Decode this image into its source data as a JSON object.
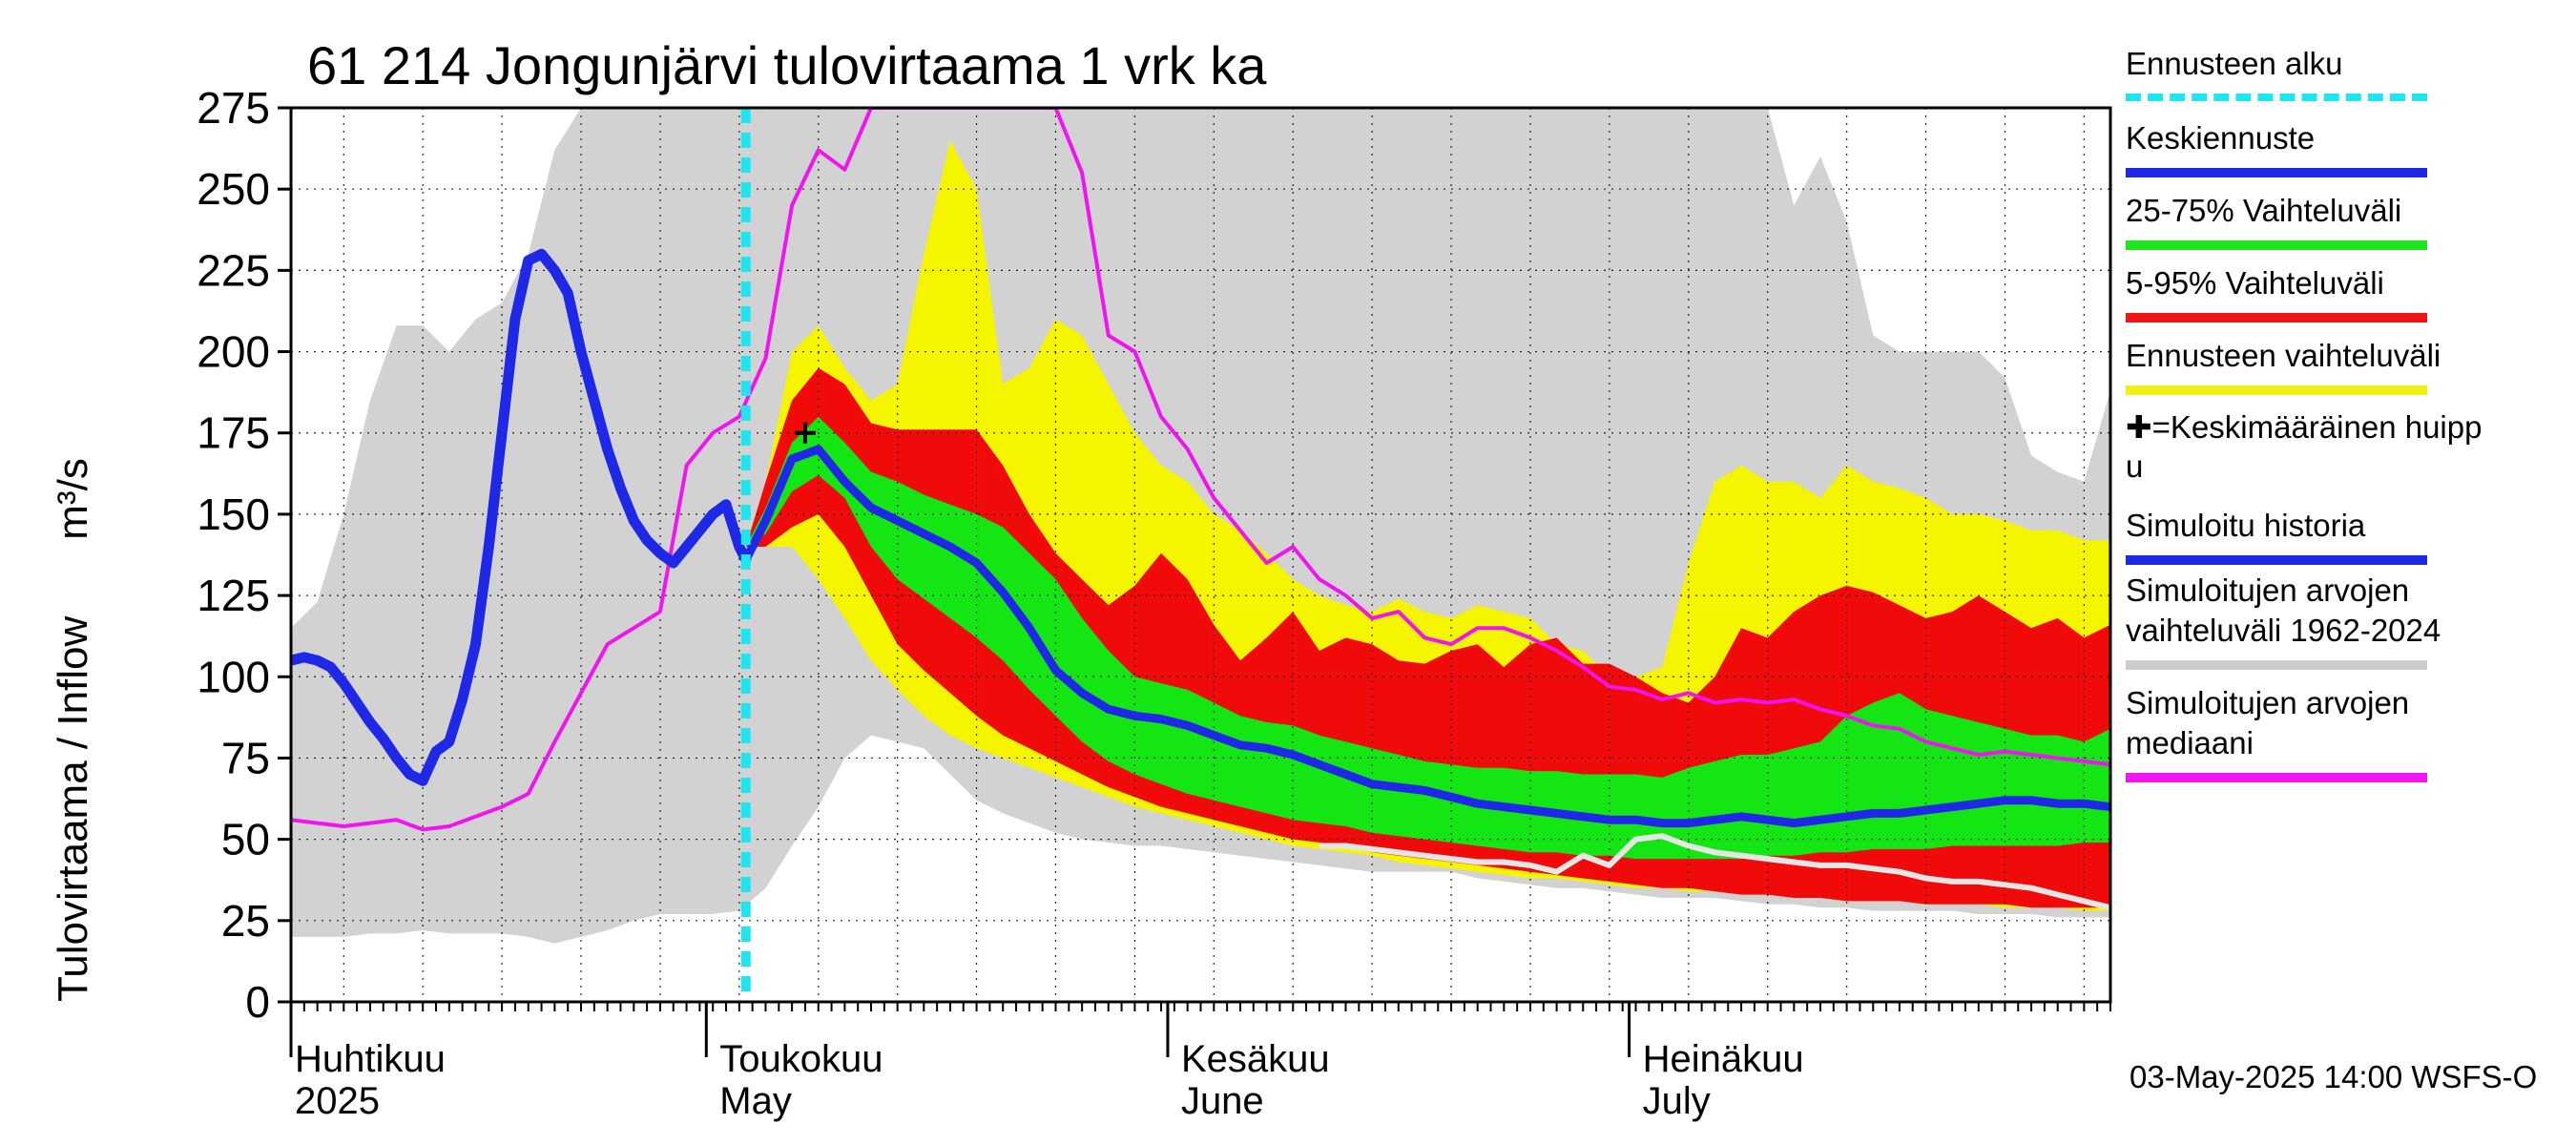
{
  "chart_data": {
    "type": "area",
    "title": "61 214 Jongunjärvi tulovirtaama 1 vrk ka",
    "ylabel": "Tulovirtaama / Inflow",
    "yunit": "m³/s",
    "ylim": [
      0,
      275
    ],
    "yticks": [
      0,
      25,
      50,
      75,
      100,
      125,
      150,
      175,
      200,
      225,
      250,
      275
    ],
    "xlim_days": [
      0,
      138
    ],
    "forecast_start_day": 34.5,
    "peak_marker": {
      "day": 39,
      "value": 175
    },
    "months": [
      {
        "day": 0,
        "fi": "Huhtikuu",
        "en": "2025"
      },
      {
        "day": 32,
        "fi": "Toukokuu",
        "en": "May"
      },
      {
        "day": 67,
        "fi": "Kesäkuu",
        "en": "June"
      },
      {
        "day": 102,
        "fi": "Heinäkuu",
        "en": "July"
      }
    ],
    "gray_band": {
      "name": "Simuloitujen arvojen vaihteluväli 1962-2024",
      "days": [
        0,
        2,
        4,
        6,
        8,
        10,
        12,
        14,
        16,
        18,
        20,
        22,
        24,
        26,
        28,
        30,
        32,
        34,
        36,
        38,
        40,
        42,
        44,
        46,
        48,
        50,
        52,
        54,
        56,
        58,
        60,
        62,
        64,
        66,
        68,
        70,
        72,
        74,
        76,
        78,
        80,
        82,
        84,
        86,
        88,
        90,
        92,
        94,
        96,
        98,
        100,
        102,
        104,
        106,
        108,
        110,
        112,
        114,
        116,
        118,
        120,
        122,
        124,
        126,
        128,
        130,
        132,
        134,
        136,
        138
      ],
      "upper": [
        115,
        123,
        150,
        185,
        208,
        208,
        200,
        210,
        215,
        230,
        262,
        275,
        275,
        275,
        275,
        275,
        275,
        275,
        275,
        275,
        275,
        275,
        275,
        275,
        275,
        275,
        275,
        275,
        275,
        275,
        275,
        275,
        275,
        275,
        275,
        275,
        275,
        275,
        275,
        275,
        275,
        275,
        275,
        275,
        275,
        275,
        275,
        275,
        275,
        275,
        275,
        275,
        275,
        275,
        275,
        275,
        275,
        245,
        260,
        240,
        205,
        200,
        200,
        200,
        200,
        192,
        168,
        163,
        160,
        188
      ],
      "lower": [
        20,
        20,
        20,
        21,
        21,
        22,
        21,
        21,
        21,
        20,
        18,
        20,
        22,
        25,
        27,
        27,
        27,
        28,
        35,
        48,
        60,
        75,
        82,
        80,
        78,
        70,
        62,
        58,
        55,
        52,
        50,
        49,
        48,
        48,
        47,
        46,
        45,
        44,
        43,
        42,
        41,
        40,
        40,
        40,
        40,
        38,
        37,
        36,
        35,
        35,
        34,
        33,
        32,
        32,
        32,
        31,
        30,
        30,
        29,
        29,
        28,
        28,
        28,
        28,
        27,
        27,
        27,
        26,
        26,
        26
      ]
    },
    "median": {
      "name": "Simuloitujen arvojen mediaani",
      "days": [
        0,
        2,
        4,
        6,
        8,
        10,
        12,
        14,
        16,
        18,
        20,
        22,
        24,
        26,
        28,
        30,
        32,
        34,
        36,
        38,
        40,
        42,
        44,
        46,
        48,
        50,
        52,
        54,
        56,
        58,
        60,
        62,
        64,
        66,
        68,
        70,
        72,
        74,
        76,
        78,
        80,
        82,
        84,
        86,
        88,
        90,
        92,
        94,
        96,
        98,
        100,
        102,
        104,
        106,
        108,
        110,
        112,
        114,
        116,
        118,
        120,
        122,
        124,
        126,
        128,
        130,
        132,
        134,
        136,
        138
      ],
      "values": [
        56,
        55,
        54,
        55,
        56,
        53,
        54,
        57,
        60,
        64,
        80,
        95,
        110,
        115,
        120,
        165,
        175,
        180,
        198,
        245,
        262,
        256,
        275,
        275,
        275,
        275,
        275,
        275,
        275,
        275,
        255,
        205,
        200,
        180,
        170,
        155,
        145,
        135,
        140,
        130,
        125,
        118,
        120,
        112,
        110,
        115,
        115,
        112,
        108,
        103,
        97,
        96,
        93,
        95,
        92,
        93,
        92,
        93,
        90,
        88,
        85,
        84,
        80,
        78,
        76,
        77,
        76,
        75,
        74,
        73
      ]
    },
    "yellow_band": {
      "name": "Ennusteen vaihteluväli",
      "days": [
        34.5,
        36,
        38,
        40,
        42,
        44,
        46,
        48,
        50,
        52,
        54,
        56,
        58,
        60,
        62,
        64,
        66,
        68,
        70,
        72,
        74,
        76,
        78,
        80,
        82,
        84,
        86,
        88,
        90,
        92,
        94,
        96,
        98,
        100,
        102,
        104,
        106,
        108,
        110,
        112,
        114,
        116,
        118,
        120,
        122,
        124,
        126,
        128,
        130,
        132,
        134,
        136,
        138
      ],
      "upper": [
        140,
        160,
        200,
        208,
        195,
        185,
        190,
        230,
        265,
        250,
        190,
        195,
        210,
        205,
        190,
        175,
        165,
        160,
        150,
        145,
        138,
        130,
        125,
        122,
        120,
        124,
        120,
        118,
        122,
        120,
        118,
        110,
        108,
        100,
        100,
        103,
        135,
        160,
        165,
        160,
        160,
        155,
        165,
        160,
        158,
        155,
        150,
        150,
        148,
        145,
        145,
        142,
        142
      ],
      "lower": [
        140,
        140,
        140,
        130,
        118,
        105,
        96,
        88,
        82,
        78,
        75,
        72,
        69,
        66,
        63,
        60,
        58,
        56,
        54,
        52,
        50,
        48,
        47,
        46,
        45,
        43,
        42,
        41,
        40,
        39,
        38,
        38,
        37,
        36,
        35,
        35,
        34,
        34,
        33,
        33,
        32,
        32,
        31,
        31,
        31,
        30,
        30,
        30,
        29,
        29,
        29,
        28,
        28
      ]
    },
    "red_band": {
      "name": "5-95% Vaihteluväli",
      "days": [
        34.5,
        36,
        38,
        40,
        42,
        44,
        46,
        48,
        50,
        52,
        54,
        56,
        58,
        60,
        62,
        64,
        66,
        68,
        70,
        72,
        74,
        76,
        78,
        80,
        82,
        84,
        86,
        88,
        90,
        92,
        94,
        96,
        98,
        100,
        102,
        104,
        106,
        108,
        110,
        112,
        114,
        116,
        118,
        120,
        122,
        124,
        126,
        128,
        130,
        132,
        134,
        136,
        138
      ],
      "upper": [
        140,
        160,
        185,
        195,
        190,
        178,
        176,
        176,
        176,
        176,
        165,
        150,
        138,
        130,
        122,
        128,
        138,
        130,
        116,
        105,
        112,
        120,
        108,
        112,
        110,
        105,
        104,
        108,
        110,
        103,
        110,
        112,
        104,
        104,
        100,
        95,
        92,
        100,
        115,
        112,
        120,
        125,
        128,
        126,
        122,
        118,
        120,
        125,
        120,
        115,
        118,
        112,
        116
      ],
      "lower": [
        140,
        140,
        146,
        150,
        140,
        125,
        110,
        102,
        95,
        88,
        82,
        78,
        74,
        70,
        66,
        63,
        60,
        58,
        56,
        54,
        52,
        50,
        49,
        48,
        46,
        45,
        44,
        43,
        42,
        41,
        40,
        39,
        38,
        37,
        36,
        35,
        35,
        34,
        33,
        33,
        32,
        32,
        31,
        31,
        31,
        30,
        30,
        30,
        30,
        29,
        29,
        29,
        29
      ]
    },
    "green_band": {
      "name": "25-75% Vaihteluväli",
      "days": [
        34.5,
        36,
        38,
        40,
        42,
        44,
        46,
        48,
        50,
        52,
        54,
        56,
        58,
        60,
        62,
        64,
        66,
        68,
        70,
        72,
        74,
        76,
        78,
        80,
        82,
        84,
        86,
        88,
        90,
        92,
        94,
        96,
        98,
        100,
        102,
        104,
        106,
        108,
        110,
        112,
        114,
        116,
        118,
        120,
        122,
        124,
        126,
        128,
        130,
        132,
        134,
        136,
        138
      ],
      "upper": [
        140,
        152,
        172,
        180,
        172,
        163,
        160,
        156,
        153,
        150,
        146,
        138,
        130,
        118,
        108,
        100,
        98,
        96,
        92,
        88,
        86,
        85,
        82,
        80,
        78,
        76,
        74,
        73,
        72,
        72,
        71,
        71,
        70,
        70,
        70,
        69,
        72,
        74,
        76,
        76,
        78,
        80,
        88,
        92,
        95,
        90,
        88,
        86,
        84,
        82,
        82,
        80,
        84
      ],
      "lower": [
        140,
        144,
        157,
        162,
        155,
        140,
        130,
        124,
        118,
        112,
        105,
        96,
        88,
        80,
        74,
        70,
        67,
        64,
        62,
        60,
        58,
        56,
        55,
        54,
        52,
        51,
        50,
        49,
        48,
        47,
        46,
        46,
        45,
        45,
        44,
        44,
        44,
        44,
        44,
        45,
        45,
        46,
        46,
        47,
        47,
        47,
        48,
        48,
        48,
        48,
        48,
        49,
        49
      ]
    },
    "mean_forecast": {
      "name": "Keskiennuste",
      "days": [
        34.5,
        36,
        38,
        40,
        42,
        44,
        46,
        48,
        50,
        52,
        54,
        56,
        58,
        60,
        62,
        64,
        66,
        68,
        70,
        72,
        74,
        76,
        78,
        80,
        82,
        84,
        86,
        88,
        90,
        92,
        94,
        96,
        98,
        100,
        102,
        104,
        106,
        108,
        110,
        112,
        114,
        116,
        118,
        120,
        122,
        124,
        126,
        128,
        130,
        132,
        134,
        136,
        138
      ],
      "values": [
        136,
        148,
        167,
        170,
        160,
        152,
        148,
        144,
        140,
        135,
        126,
        115,
        102,
        95,
        90,
        88,
        87,
        85,
        82,
        79,
        78,
        76,
        73,
        70,
        67,
        66,
        65,
        63,
        61,
        60,
        59,
        58,
        57,
        56,
        56,
        55,
        55,
        56,
        57,
        56,
        55,
        56,
        57,
        58,
        58,
        59,
        60,
        61,
        62,
        62,
        61,
        61,
        60
      ]
    },
    "simulated_history": {
      "name": "Simuloitu historia",
      "days": [
        0,
        1,
        2,
        3,
        4,
        5,
        6,
        7,
        8,
        9,
        10,
        11,
        12,
        13,
        14,
        15,
        16,
        17,
        18,
        19,
        20,
        21,
        22,
        23,
        24,
        25,
        26,
        27,
        28,
        29,
        30,
        31,
        32,
        33,
        34,
        34.5
      ],
      "values": [
        105,
        106,
        105,
        103,
        98,
        92,
        86,
        81,
        75,
        70,
        68,
        77,
        80,
        93,
        110,
        140,
        175,
        210,
        228,
        230,
        225,
        218,
        200,
        185,
        170,
        158,
        148,
        142,
        138,
        135,
        140,
        145,
        150,
        153,
        140,
        136
      ]
    },
    "white_line": {
      "name": "Simuloitujen arvojen mediaani (lähihistoria)",
      "days": [
        78,
        80,
        82,
        84,
        86,
        88,
        90,
        92,
        94,
        96,
        98,
        100,
        102,
        104,
        106,
        108,
        110,
        112,
        114,
        116,
        118,
        120,
        122,
        124,
        126,
        128,
        130,
        132,
        134,
        136,
        138
      ],
      "values": [
        48,
        48,
        47,
        46,
        45,
        44,
        43,
        43,
        42,
        40,
        45,
        42,
        50,
        51,
        48,
        46,
        45,
        44,
        43,
        42,
        42,
        41,
        40,
        38,
        37,
        37,
        36,
        35,
        33,
        31,
        29
      ]
    }
  },
  "legend": [
    {
      "label": "Ennusteen alku",
      "color": "#1ee6f0",
      "style": "dashed"
    },
    {
      "label": "Keskiennuste",
      "color": "#1e28e6",
      "style": "solid"
    },
    {
      "label": "25-75% Vaihteluväli",
      "color": "#1ee61e",
      "style": "solid"
    },
    {
      "label": "5-95% Vaihteluväli",
      "color": "#f01414",
      "style": "solid"
    },
    {
      "label": "Ennusteen vaihteluväli",
      "color": "#f0f014",
      "style": "solid"
    },
    {
      "label": "✚=Keskimääräinen huipp",
      "label2": "u",
      "color": "#000000",
      "style": "none"
    },
    {
      "label": "Simuloitu historia",
      "color": "#1e28e6",
      "style": "solid"
    },
    {
      "label": "Simuloitujen arvojen",
      "label2": "vaihteluväli 1962-2024",
      "color": "#cccccc",
      "style": "solid"
    },
    {
      "label": "Simuloitujen arvojen",
      "label2": "mediaani",
      "color": "#f014f0",
      "style": "solid"
    }
  ],
  "footer": "03-May-2025 14:00 WSFS-O",
  "colors": {
    "gray": "#d2d2d2",
    "yellow": "#f5f500",
    "red": "#f00a0a",
    "green": "#14e614",
    "blue": "#1e28e6",
    "magenta": "#f014f0",
    "cyan": "#1ee6f0",
    "white_line": "#e6e6e6"
  }
}
